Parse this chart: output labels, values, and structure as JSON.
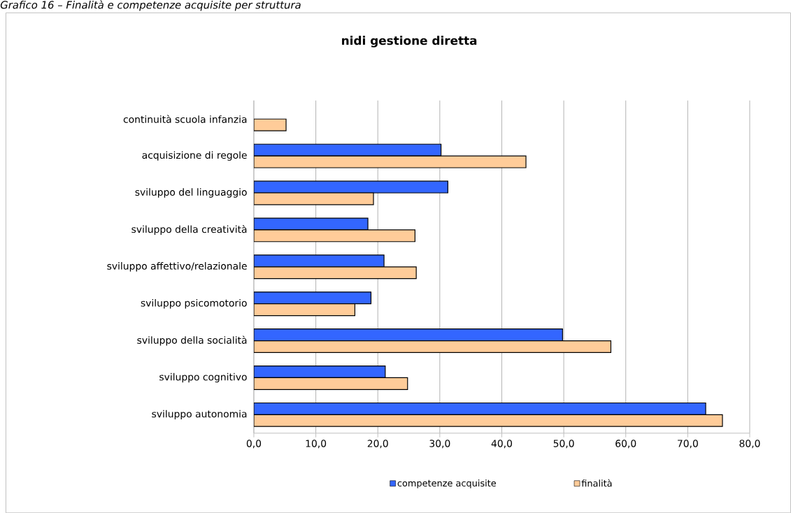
{
  "chart_data": {
    "type": "bar",
    "orientation": "horizontal",
    "title": "nidi gestione diretta",
    "annotations": [
      "*Grafico 16 – Finalità e competenze acquisite per struttura*"
    ],
    "categories": [
      "continuità scuola infanzia",
      "acquisizione di regole",
      "sviluppo del linguaggio",
      "sviluppo della creatività",
      "sviluppo affettivo/relazionale",
      "sviluppo psicomotorio",
      "sviluppo della socialità",
      "sviluppo cognitivo",
      "sviluppo autonomia"
    ],
    "series": [
      {
        "name": "competenze acquisite",
        "color": "#3366ff",
        "values": [
          null,
          30.2,
          31.3,
          18.4,
          21.0,
          18.9,
          49.8,
          21.2,
          72.9
        ]
      },
      {
        "name": "finalità",
        "color": "#ffcc99",
        "values": [
          5.2,
          43.9,
          19.3,
          26.0,
          26.2,
          16.3,
          57.6,
          24.8,
          75.6
        ]
      }
    ],
    "xlim": [
      0,
      80
    ],
    "xticks": [
      {
        "value": 0,
        "label": "0,0"
      },
      {
        "value": 10,
        "label": "10,0"
      },
      {
        "value": 20,
        "label": "20,0"
      },
      {
        "value": 30,
        "label": "30,0"
      },
      {
        "value": 40,
        "label": "40,0"
      },
      {
        "value": 50,
        "label": "50,0"
      },
      {
        "value": 60,
        "label": "60,0"
      },
      {
        "value": 70,
        "label": "70,0"
      },
      {
        "value": 80,
        "label": "80,0"
      }
    ],
    "grid": "x",
    "legend": "bottom"
  }
}
